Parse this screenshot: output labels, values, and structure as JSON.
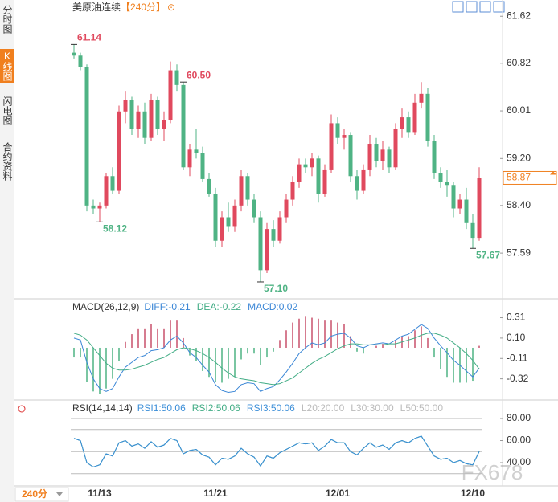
{
  "header": {
    "title": "美原油连续",
    "period": "【240分】",
    "icon": "⊙"
  },
  "sidebar": [
    "分时图",
    "K线图",
    "闪电图",
    "合约资料"
  ],
  "period_select": "240分",
  "watermark": "FX678",
  "chart_data": [
    {
      "type": "candlestick",
      "up_color": "#e0495e",
      "down_color": "#4fb384",
      "categories": [
        null,
        null,
        null,
        null,
        "11/13",
        null,
        null,
        null,
        null,
        null,
        null,
        null,
        null,
        null,
        null,
        null,
        null,
        null,
        null,
        null,
        null,
        null,
        "11/21",
        null,
        null,
        null,
        null,
        null,
        null,
        null,
        null,
        null,
        null,
        null,
        null,
        null,
        null,
        null,
        null,
        null,
        null,
        "12/01",
        null,
        null,
        null,
        null,
        null,
        null,
        null,
        null,
        null,
        null,
        null,
        null,
        null,
        null,
        null,
        null,
        null,
        null,
        null,
        null,
        "12/10",
        null
      ],
      "candles": [
        [
          61.0,
          61.14,
          60.9,
          60.95
        ],
        [
          60.95,
          61.0,
          60.7,
          60.75
        ],
        [
          60.75,
          60.8,
          58.3,
          58.4
        ],
        [
          58.4,
          58.5,
          58.25,
          58.35
        ],
        [
          58.35,
          58.45,
          58.12,
          58.4
        ],
        [
          58.4,
          58.95,
          58.35,
          58.9
        ],
        [
          58.9,
          59.05,
          58.6,
          58.65
        ],
        [
          58.65,
          60.1,
          58.6,
          60.0
        ],
        [
          60.0,
          60.35,
          59.8,
          60.2
        ],
        [
          60.2,
          60.25,
          59.6,
          59.7
        ],
        [
          59.7,
          60.1,
          59.55,
          60.0
        ],
        [
          60.0,
          60.15,
          59.45,
          59.55
        ],
        [
          59.55,
          60.3,
          59.5,
          60.2
        ],
        [
          60.2,
          60.25,
          59.6,
          59.7
        ],
        [
          59.7,
          60.0,
          59.5,
          59.85
        ],
        [
          59.85,
          60.85,
          59.8,
          60.7
        ],
        [
          60.7,
          60.8,
          60.35,
          60.45
        ],
        [
          60.45,
          60.5,
          59.0,
          59.05
        ],
        [
          59.05,
          59.45,
          58.9,
          59.35
        ],
        [
          59.35,
          59.7,
          59.2,
          59.3
        ],
        [
          59.3,
          59.4,
          58.8,
          58.85
        ],
        [
          58.85,
          58.95,
          58.55,
          58.6
        ],
        [
          58.6,
          58.7,
          57.7,
          57.8
        ],
        [
          57.8,
          58.3,
          57.7,
          58.2
        ],
        [
          58.2,
          58.45,
          57.95,
          58.05
        ],
        [
          58.05,
          58.5,
          57.95,
          58.4
        ],
        [
          58.4,
          59.0,
          58.3,
          58.9
        ],
        [
          58.9,
          58.95,
          58.4,
          58.5
        ],
        [
          58.5,
          58.6,
          58.1,
          58.2
        ],
        [
          58.2,
          58.3,
          57.1,
          57.3
        ],
        [
          57.3,
          58.1,
          57.25,
          58.0
        ],
        [
          58.0,
          58.15,
          57.7,
          57.8
        ],
        [
          57.8,
          58.3,
          57.75,
          58.2
        ],
        [
          58.2,
          58.6,
          58.1,
          58.5
        ],
        [
          58.5,
          58.9,
          58.4,
          58.8
        ],
        [
          58.8,
          59.2,
          58.7,
          59.1
        ],
        [
          59.1,
          59.2,
          58.95,
          59.05
        ],
        [
          59.05,
          59.3,
          58.9,
          59.2
        ],
        [
          59.2,
          59.25,
          58.45,
          58.6
        ],
        [
          58.6,
          59.1,
          58.55,
          59.0
        ],
        [
          59.0,
          59.95,
          58.95,
          59.8
        ],
        [
          59.8,
          59.9,
          59.45,
          59.55
        ],
        [
          59.55,
          59.7,
          59.35,
          59.6
        ],
        [
          59.6,
          59.65,
          58.8,
          58.9
        ],
        [
          58.9,
          59.0,
          58.5,
          58.65
        ],
        [
          58.65,
          59.1,
          58.6,
          59.0
        ],
        [
          59.0,
          59.6,
          58.9,
          59.45
        ],
        [
          59.45,
          59.55,
          59.05,
          59.15
        ],
        [
          59.15,
          59.5,
          59.0,
          59.35
        ],
        [
          59.35,
          59.4,
          58.95,
          59.05
        ],
        [
          59.05,
          59.8,
          59.0,
          59.7
        ],
        [
          59.7,
          60.05,
          59.55,
          59.9
        ],
        [
          59.9,
          60.0,
          59.55,
          59.65
        ],
        [
          59.65,
          60.3,
          59.6,
          60.15
        ],
        [
          60.15,
          60.5,
          60.05,
          60.3
        ],
        [
          60.3,
          60.4,
          59.4,
          59.5
        ],
        [
          59.5,
          59.6,
          58.85,
          58.95
        ],
        [
          58.95,
          59.05,
          58.7,
          58.8
        ],
        [
          58.8,
          59.0,
          58.55,
          58.75
        ],
        [
          58.75,
          58.8,
          58.2,
          58.35
        ],
        [
          58.35,
          58.6,
          58.25,
          58.5
        ],
        [
          58.5,
          58.7,
          58.0,
          58.1
        ],
        [
          58.1,
          58.25,
          57.67,
          57.85
        ],
        [
          57.85,
          59.05,
          57.8,
          58.87
        ]
      ],
      "ylim": [
        56.84,
        61.76
      ],
      "yticks": [
        61.62,
        60.82,
        60.01,
        {
          "value": 59.2,
          "label": "59.20"
        },
        {
          "value": 58.4,
          "label": "58.40"
        },
        57.59
      ],
      "last_price": 58.87,
      "annotations": [
        61.14,
        {
          "value": 58.12,
          "label": "58.12"
        },
        {
          "value": 60.5,
          "label": "60.50"
        },
        {
          "value": 57.1,
          "label": "57.10"
        },
        57.67
      ]
    },
    {
      "type": "macd",
      "title": "MACD(26,12,9)",
      "ylim": [
        -0.53,
        0.48
      ],
      "yticks": [
        0.31,
        {
          "value": 0.1,
          "label": "0.10"
        },
        -0.11,
        -0.32
      ],
      "series": [
        {
          "name": "DIFF:-0.21",
          "color": "#3a86d6",
          "values": [
            0.1,
            0.08,
            -0.15,
            -0.32,
            -0.42,
            -0.45,
            -0.42,
            -0.3,
            -0.2,
            -0.15,
            -0.1,
            -0.08,
            -0.03,
            -0.02,
            0.0,
            0.08,
            0.12,
            0.05,
            -0.05,
            -0.1,
            -0.18,
            -0.25,
            -0.38,
            -0.44,
            -0.46,
            -0.45,
            -0.38,
            -0.36,
            -0.37,
            -0.45,
            -0.42,
            -0.4,
            -0.33,
            -0.25,
            -0.16,
            -0.06,
            0.0,
            0.05,
            0.03,
            0.05,
            0.12,
            0.14,
            0.15,
            0.1,
            0.02,
            0.0,
            0.03,
            0.04,
            0.05,
            0.04,
            0.08,
            0.12,
            0.14,
            0.19,
            0.24,
            0.2,
            0.1,
            0.02,
            -0.05,
            -0.13,
            -0.18,
            -0.24,
            -0.3,
            -0.21
          ]
        },
        {
          "name": "DEA:-0.22",
          "color": "#43ad86",
          "values": [
            0.15,
            0.13,
            0.08,
            0.0,
            -0.08,
            -0.16,
            -0.21,
            -0.23,
            -0.23,
            -0.22,
            -0.2,
            -0.18,
            -0.15,
            -0.12,
            -0.1,
            -0.06,
            -0.02,
            0.0,
            -0.01,
            -0.03,
            -0.06,
            -0.1,
            -0.15,
            -0.21,
            -0.26,
            -0.3,
            -0.32,
            -0.33,
            -0.34,
            -0.36,
            -0.37,
            -0.38,
            -0.37,
            -0.34,
            -0.31,
            -0.26,
            -0.21,
            -0.16,
            -0.12,
            -0.09,
            -0.05,
            -0.01,
            0.02,
            0.04,
            0.04,
            0.03,
            0.03,
            0.03,
            0.03,
            0.04,
            0.04,
            0.06,
            0.08,
            0.1,
            0.13,
            0.15,
            0.15,
            0.13,
            0.1,
            0.05,
            0.0,
            -0.06,
            -0.13,
            -0.22
          ]
        },
        {
          "name": "MACD:0.02",
          "color": "#3a86d6",
          "up_color": "#c8506c",
          "down_color": "#4fb384",
          "values": [
            -0.1,
            -0.1,
            -0.35,
            -0.45,
            -0.48,
            -0.42,
            -0.32,
            -0.14,
            0.06,
            0.14,
            0.2,
            0.2,
            0.24,
            0.2,
            0.2,
            0.28,
            0.28,
            0.1,
            -0.08,
            -0.14,
            -0.24,
            -0.3,
            -0.35,
            -0.36,
            -0.32,
            -0.3,
            -0.12,
            -0.06,
            -0.06,
            -0.18,
            -0.1,
            -0.04,
            0.08,
            0.18,
            0.26,
            0.3,
            0.32,
            0.31,
            0.3,
            0.28,
            0.28,
            0.26,
            0.24,
            0.12,
            -0.04,
            -0.06,
            0.0,
            0.02,
            0.04,
            0.0,
            0.08,
            0.12,
            0.12,
            0.18,
            0.22,
            0.1,
            -0.1,
            -0.22,
            -0.3,
            -0.36,
            -0.36,
            -0.36,
            -0.34,
            0.02
          ]
        }
      ]
    },
    {
      "type": "rsi",
      "title": "RSI(14,14,14)",
      "ylim": [
        18.9,
        95.3
      ],
      "yticks": [
        {
          "value": 80,
          "label": "80.00"
        },
        {
          "value": 60,
          "label": "60.00"
        },
        {
          "value": 40,
          "label": "40.00"
        }
      ],
      "ref_lines": [
        30,
        50,
        70,
        80
      ],
      "levels": [
        "L20:20.00",
        "L30:30.00",
        "L50:50.00"
      ],
      "series": [
        {
          "name": "RSI1:50.06",
          "color": "#3d8fd8",
          "values": [
            62,
            60,
            40,
            36,
            38,
            48,
            46,
            58,
            60,
            55,
            57,
            53,
            59,
            54,
            56,
            62,
            60,
            48,
            51,
            52,
            47,
            45,
            38,
            44,
            43,
            46,
            53,
            48,
            45,
            37,
            46,
            44,
            49,
            52,
            55,
            58,
            57,
            58,
            51,
            55,
            61,
            58,
            58,
            50,
            47,
            53,
            58,
            54,
            56,
            52,
            58,
            60,
            58,
            62,
            64,
            55,
            46,
            43,
            44,
            40,
            42,
            39,
            38,
            50.06
          ]
        },
        {
          "name": "RSI2:50.06",
          "color": "#43ad86",
          "values": [
            62,
            60,
            40,
            36,
            38,
            48,
            46,
            58,
            60,
            55,
            57,
            53,
            59,
            54,
            56,
            62,
            60,
            48,
            51,
            52,
            47,
            45,
            38,
            44,
            43,
            46,
            53,
            48,
            45,
            37,
            46,
            44,
            49,
            52,
            55,
            58,
            57,
            58,
            51,
            55,
            61,
            58,
            58,
            50,
            47,
            53,
            58,
            54,
            56,
            52,
            58,
            60,
            58,
            62,
            64,
            55,
            46,
            43,
            44,
            40,
            42,
            39,
            38,
            50.06
          ]
        },
        {
          "name": "RSI3:50.06",
          "color": "#3d8fd8",
          "values": [
            62,
            60,
            40,
            36,
            38,
            48,
            46,
            58,
            60,
            55,
            57,
            53,
            59,
            54,
            56,
            62,
            60,
            48,
            51,
            52,
            47,
            45,
            38,
            44,
            43,
            46,
            53,
            48,
            45,
            37,
            46,
            44,
            49,
            52,
            55,
            58,
            57,
            58,
            51,
            55,
            61,
            58,
            58,
            50,
            47,
            53,
            58,
            54,
            56,
            52,
            58,
            60,
            58,
            62,
            64,
            55,
            46,
            43,
            44,
            40,
            42,
            39,
            38,
            50.06
          ]
        }
      ]
    }
  ]
}
